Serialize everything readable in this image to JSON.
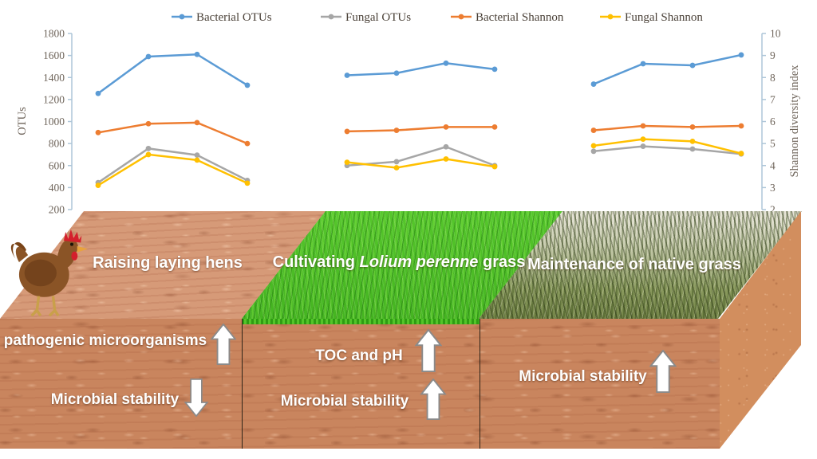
{
  "chart_data": {
    "type": "line",
    "title": "",
    "ylabel_left": "OTUs",
    "ylabel_right": "Shannon diversity index",
    "y_left": {
      "min": 200,
      "max": 1800,
      "step": 200
    },
    "y_right": {
      "min": 2,
      "max": 10,
      "step": 1
    },
    "legend_position": "top",
    "grid": false,
    "groups": 3,
    "points_per_group": 4,
    "series": [
      {
        "name": "Bacterial OTUs",
        "axis": "left",
        "color": "#5B9BD5",
        "values": [
          [
            1255,
            1590,
            1610,
            1330
          ],
          [
            1420,
            1440,
            1530,
            1475
          ],
          [
            1340,
            1525,
            1510,
            1605
          ]
        ]
      },
      {
        "name": "Fungal OTUs",
        "axis": "left",
        "color": "#A6A6A6",
        "values": [
          [
            445,
            755,
            695,
            465
          ],
          [
            600,
            635,
            770,
            600
          ],
          [
            730,
            775,
            750,
            705
          ]
        ]
      },
      {
        "name": "Bacterial Shannon",
        "axis": "right",
        "color": "#ED7D31",
        "values": [
          [
            5.5,
            5.9,
            5.95,
            5.0
          ],
          [
            5.55,
            5.6,
            5.75,
            5.75
          ],
          [
            5.6,
            5.8,
            5.75,
            5.8
          ]
        ]
      },
      {
        "name": "Fungal Shannon",
        "axis": "right",
        "color": "#FFC000",
        "values": [
          [
            3.1,
            4.5,
            4.25,
            3.2
          ],
          [
            4.15,
            3.9,
            4.3,
            3.95
          ],
          [
            4.9,
            5.2,
            5.1,
            4.55
          ]
        ]
      }
    ]
  },
  "scene": {
    "palette": {
      "soil_front": "#c9855e",
      "soil_top": "#d69a78",
      "soil_side": "#d28e5e",
      "grass_bright": "#3eb11c",
      "line_divider": "#2f2418"
    },
    "sections": [
      {
        "surface_label": "Raising laying hens",
        "front_lines": [
          {
            "text": "pathogenic microorganisms",
            "arrow": "up"
          },
          {
            "text": "Microbial stability",
            "arrow": "down"
          }
        ]
      },
      {
        "label_prefix": "Cultivating ",
        "label_species": "Lolium perenne",
        "label_suffix": " grass",
        "front_lines": [
          {
            "text": "TOC and pH",
            "arrow": "up"
          },
          {
            "text": "Microbial stability",
            "arrow": "up"
          }
        ]
      },
      {
        "surface_label": "Maintenance of native grass",
        "front_lines": [
          {
            "text": "Microbial stability",
            "arrow": "up"
          }
        ]
      }
    ]
  }
}
